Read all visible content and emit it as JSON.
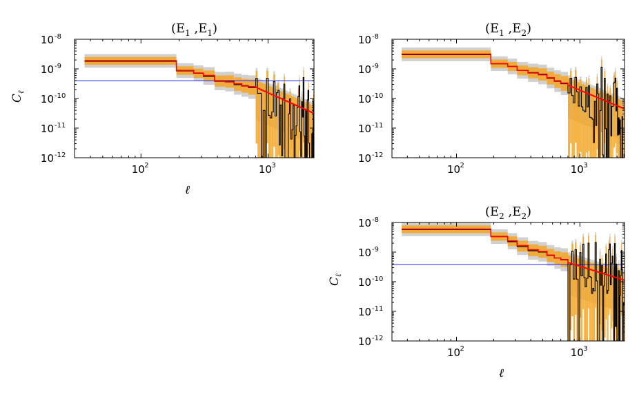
{
  "chart_data": [
    {
      "id": "E1E1",
      "type": "line",
      "scale": "log-log",
      "title": "(E₁ ,E₁ )",
      "title_parts": [
        "(E",
        "1",
        " ,E",
        "1",
        ")"
      ],
      "xlabel": "ℓ",
      "ylabel": "Cℓ",
      "ylabel_parts": [
        "C",
        "ℓ"
      ],
      "xlim": [
        30,
        2300
      ],
      "ylim_exp": [
        -12,
        -8
      ],
      "xticks": [
        {
          "value": 100,
          "base": "10",
          "exp": "2"
        },
        {
          "value": 1000,
          "base": "10",
          "exp": "3"
        }
      ],
      "yticks": [
        {
          "exp_value": -12,
          "base": "10",
          "exp": "-12"
        },
        {
          "exp_value": -11,
          "base": "10",
          "exp": "-11"
        },
        {
          "exp_value": -10,
          "base": "10",
          "exp": "-10"
        },
        {
          "exp_value": -9,
          "base": "10",
          "exp": "-9"
        },
        {
          "exp_value": -8,
          "base": "10",
          "exp": "-8"
        }
      ],
      "noise_level_exp": -9.4,
      "series": [
        {
          "name": "data bandpowers (black)",
          "color": "#000000"
        },
        {
          "name": "theory (red)",
          "color": "#ff0000"
        },
        {
          "name": "error band (orange)",
          "color": "#f5a623"
        },
        {
          "name": "error band (grey)",
          "color": "#c8c8c8"
        },
        {
          "name": "noise level (blue)",
          "color": "#3b3bff"
        }
      ],
      "coarse_bins": [
        {
          "l_min": 36,
          "l_max": 190,
          "log10_C": -8.72
        },
        {
          "l_min": 190,
          "l_max": 260,
          "log10_C": -9.05
        },
        {
          "l_min": 260,
          "l_max": 310,
          "log10_C": -9.14
        },
        {
          "l_min": 310,
          "l_max": 380,
          "log10_C": -9.22
        },
        {
          "l_min": 380,
          "l_max": 460,
          "log10_C": -9.42
        },
        {
          "l_min": 460,
          "l_max": 540,
          "log10_C": -9.44
        },
        {
          "l_min": 540,
          "l_max": 620,
          "log10_C": -9.5
        },
        {
          "l_min": 620,
          "l_max": 700,
          "log10_C": -9.58
        },
        {
          "l_min": 700,
          "l_max": 800,
          "log10_C": -9.6
        }
      ],
      "theory_tail": {
        "l_start": 800,
        "log10_C_start": -9.62,
        "l_end": 2300,
        "log10_C_end": -10.5
      },
      "scatter_amplitude": 1.3,
      "seed": 11
    },
    {
      "id": "E1E2",
      "type": "line",
      "scale": "log-log",
      "title": "(E₁ ,E₂ )",
      "title_parts": [
        "(E",
        "1",
        " ,E",
        "2",
        ")"
      ],
      "xlabel": "",
      "ylabel": "",
      "ylabel_parts": [
        "",
        ""
      ],
      "xlim": [
        30,
        2300
      ],
      "ylim_exp": [
        -12,
        -8
      ],
      "xticks": [
        {
          "value": 100,
          "base": "10",
          "exp": "2"
        },
        {
          "value": 1000,
          "base": "10",
          "exp": "3"
        }
      ],
      "yticks": [
        {
          "exp_value": -12,
          "base": "10",
          "exp": "-12"
        },
        {
          "exp_value": -11,
          "base": "10",
          "exp": "-11"
        },
        {
          "exp_value": -10,
          "base": "10",
          "exp": "-10"
        },
        {
          "exp_value": -9,
          "base": "10",
          "exp": "-9"
        },
        {
          "exp_value": -8,
          "base": "10",
          "exp": "-8"
        }
      ],
      "noise_level_exp": null,
      "series": [
        {
          "name": "data bandpowers (black)",
          "color": "#000000"
        },
        {
          "name": "theory (red)",
          "color": "#ff0000"
        },
        {
          "name": "error band (orange)",
          "color": "#f5a623"
        },
        {
          "name": "error band (grey)",
          "color": "#c8c8c8"
        }
      ],
      "coarse_bins": [
        {
          "l_min": 36,
          "l_max": 190,
          "log10_C": -8.5
        },
        {
          "l_min": 190,
          "l_max": 260,
          "log10_C": -8.82
        },
        {
          "l_min": 260,
          "l_max": 310,
          "log10_C": -8.92
        },
        {
          "l_min": 310,
          "l_max": 380,
          "log10_C": -9.05
        },
        {
          "l_min": 380,
          "l_max": 460,
          "log10_C": -9.14
        },
        {
          "l_min": 460,
          "l_max": 540,
          "log10_C": -9.2
        },
        {
          "l_min": 540,
          "l_max": 620,
          "log10_C": -9.3
        },
        {
          "l_min": 620,
          "l_max": 700,
          "log10_C": -9.42
        },
        {
          "l_min": 700,
          "l_max": 800,
          "log10_C": -9.48
        }
      ],
      "theory_tail": {
        "l_start": 800,
        "log10_C_start": -9.55,
        "l_end": 2300,
        "log10_C_end": -10.35
      },
      "scatter_amplitude": 1.1,
      "seed": 23
    },
    {
      "id": "E2E2",
      "type": "line",
      "scale": "log-log",
      "title": "(E₂ ,E₂ )",
      "title_parts": [
        "(E",
        "2",
        " ,E",
        "2",
        ")"
      ],
      "xlabel": "ℓ",
      "ylabel": "Cℓ",
      "ylabel_parts": [
        "C",
        "ℓ"
      ],
      "xlim": [
        30,
        2300
      ],
      "ylim_exp": [
        -12,
        -8
      ],
      "xticks": [
        {
          "value": 100,
          "base": "10",
          "exp": "2"
        },
        {
          "value": 1000,
          "base": "10",
          "exp": "3"
        }
      ],
      "yticks": [
        {
          "exp_value": -12,
          "base": "10",
          "exp": "-12"
        },
        {
          "exp_value": -11,
          "base": "10",
          "exp": "-11"
        },
        {
          "exp_value": -10,
          "base": "10",
          "exp": "-10"
        },
        {
          "exp_value": -9,
          "base": "10",
          "exp": "-9"
        },
        {
          "exp_value": -8,
          "base": "10",
          "exp": "-8"
        }
      ],
      "noise_level_exp": -9.42,
      "series": [
        {
          "name": "data bandpowers (black)",
          "color": "#000000"
        },
        {
          "name": "theory (red)",
          "color": "#ff0000"
        },
        {
          "name": "error band (orange)",
          "color": "#f5a623"
        },
        {
          "name": "error band (grey)",
          "color": "#c8c8c8"
        },
        {
          "name": "noise level (blue)",
          "color": "#3b3bff"
        }
      ],
      "coarse_bins": [
        {
          "l_min": 36,
          "l_max": 190,
          "log10_C": -8.22
        },
        {
          "l_min": 190,
          "l_max": 260,
          "log10_C": -8.48
        },
        {
          "l_min": 260,
          "l_max": 310,
          "log10_C": -8.62
        },
        {
          "l_min": 310,
          "l_max": 380,
          "log10_C": -8.78
        },
        {
          "l_min": 380,
          "l_max": 460,
          "log10_C": -8.92
        },
        {
          "l_min": 460,
          "l_max": 540,
          "log10_C": -8.98
        },
        {
          "l_min": 540,
          "l_max": 620,
          "log10_C": -9.1
        },
        {
          "l_min": 620,
          "l_max": 700,
          "log10_C": -9.2
        },
        {
          "l_min": 700,
          "l_max": 800,
          "log10_C": -9.25
        }
      ],
      "theory_tail": {
        "l_start": 800,
        "log10_C_start": -9.35,
        "l_end": 2300,
        "log10_C_end": -9.95
      },
      "scatter_amplitude": 1.2,
      "seed": 37
    }
  ]
}
